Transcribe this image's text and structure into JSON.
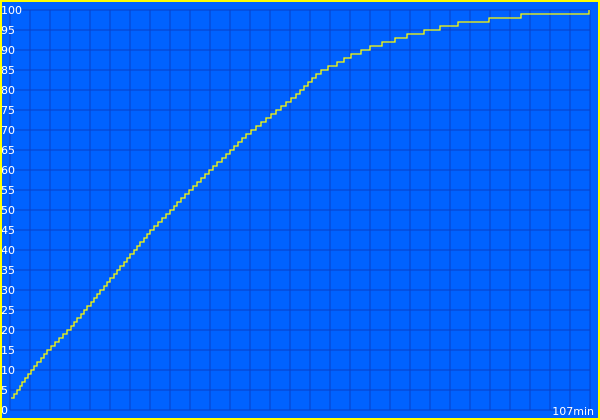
{
  "chart_data": {
    "type": "line",
    "title": "",
    "xlabel": "",
    "ylabel": "",
    "x_unit_label": "107min",
    "xlim": [
      0,
      107
    ],
    "ylim": [
      0,
      100
    ],
    "y_ticks": [
      "0",
      "5",
      "10",
      "15",
      "20",
      "25",
      "30",
      "35",
      "40",
      "45",
      "50",
      "55",
      "60",
      "65",
      "70",
      "75",
      "80",
      "85",
      "90",
      "95",
      "100"
    ],
    "grid": true,
    "colors": {
      "background": "#0062ff",
      "grid": "#0a3fc4",
      "line": "#ffff00",
      "border": "#ffff00",
      "text": "#ffffff"
    },
    "series": [
      {
        "points": [
          [
            0.2,
            3
          ],
          [
            3.7,
            10
          ],
          [
            7.4,
            16
          ],
          [
            11.1,
            21
          ],
          [
            16.6,
            30
          ],
          [
            25.8,
            45
          ],
          [
            35.1,
            58
          ],
          [
            44.3,
            70
          ],
          [
            53.5,
            80
          ],
          [
            55.7,
            83
          ],
          [
            57.2,
            85
          ],
          [
            58.5,
            86
          ],
          [
            60.2,
            87
          ],
          [
            61.5,
            88
          ],
          [
            62.9,
            89
          ],
          [
            64.6,
            90
          ],
          [
            66.4,
            91
          ],
          [
            68.5,
            92
          ],
          [
            70.9,
            93
          ],
          [
            73.2,
            94
          ],
          [
            76.2,
            95
          ],
          [
            79.3,
            96
          ],
          [
            82.5,
            97
          ],
          [
            88.2,
            98
          ],
          [
            94.1,
            99
          ],
          [
            106.8,
            100
          ]
        ]
      }
    ]
  }
}
